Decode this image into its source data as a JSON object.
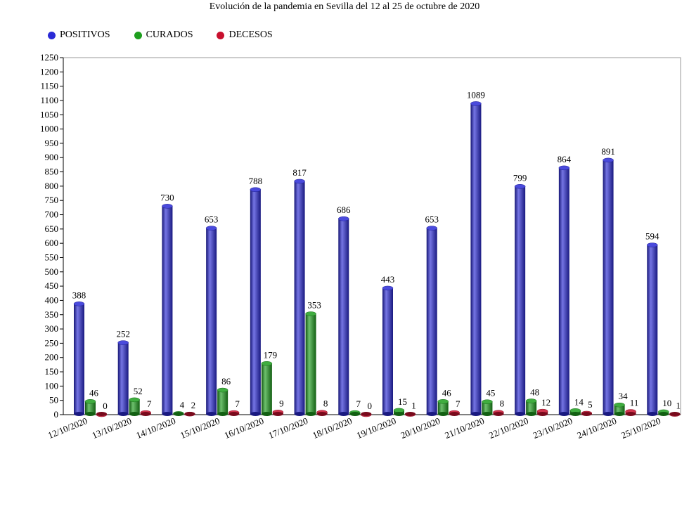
{
  "chart_data": {
    "type": "bar",
    "title": "Evolución de la pandemia en Sevilla del 12 al 25 de octubre de 2020",
    "xlabel": "",
    "ylabel": "",
    "ylim": [
      0,
      1250
    ],
    "ytick_step": 50,
    "grid": false,
    "legend_position": "top-left",
    "categories": [
      "12/10/2020",
      "13/10/2020",
      "14/10/2020",
      "15/10/2020",
      "16/10/2020",
      "17/10/2020",
      "18/10/2020",
      "19/10/2020",
      "20/10/2020",
      "21/10/2020",
      "22/10/2020",
      "23/10/2020",
      "24/10/2020",
      "25/10/2020"
    ],
    "series": [
      {
        "name": "POSITIVOS",
        "color": "#2a2ad6",
        "values": [
          388,
          252,
          730,
          653,
          788,
          817,
          686,
          443,
          653,
          1089,
          799,
          864,
          891,
          594
        ]
      },
      {
        "name": "CURADOS",
        "color": "#1e9e1e",
        "values": [
          46,
          52,
          4,
          86,
          179,
          353,
          7,
          15,
          46,
          45,
          48,
          14,
          34,
          10
        ]
      },
      {
        "name": "DECESOS",
        "color": "#c8102e",
        "values": [
          0,
          7,
          2,
          7,
          9,
          8,
          0,
          1,
          7,
          8,
          12,
          5,
          11,
          1
        ]
      }
    ]
  }
}
